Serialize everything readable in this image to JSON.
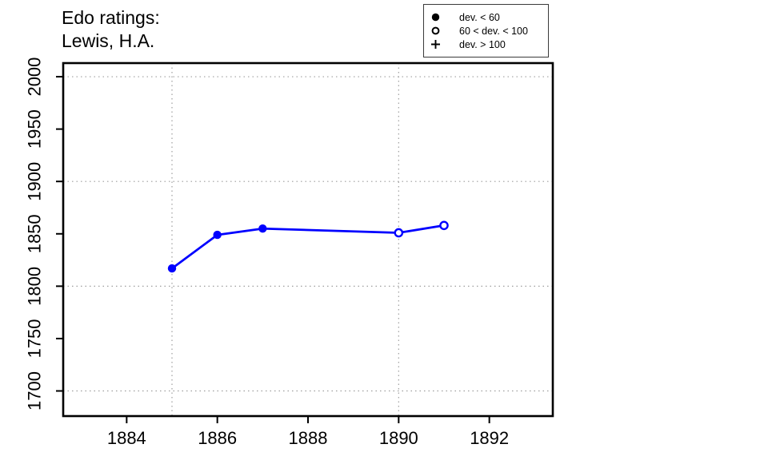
{
  "title": {
    "line1": "Edo ratings:",
    "line2": "Lewis, H.A."
  },
  "legend": {
    "position": "top-right",
    "items": [
      {
        "symbol": "filled-circle",
        "label": "dev. < 60"
      },
      {
        "symbol": "open-circle",
        "label": "60 < dev. < 100"
      },
      {
        "symbol": "plus",
        "label": "dev. > 100"
      }
    ]
  },
  "chart_data": {
    "type": "line",
    "title": "Edo ratings: Lewis, H.A.",
    "xlabel": "",
    "ylabel": "",
    "series": [
      {
        "name": "Edo rating",
        "color": "#0000ff",
        "points": [
          {
            "x": 1885,
            "y": 1817,
            "marker": "filled-circle"
          },
          {
            "x": 1886,
            "y": 1849,
            "marker": "filled-circle"
          },
          {
            "x": 1887,
            "y": 1855,
            "marker": "filled-circle"
          },
          {
            "x": 1890,
            "y": 1851,
            "marker": "open-circle"
          },
          {
            "x": 1891,
            "y": 1858,
            "marker": "open-circle"
          }
        ]
      }
    ],
    "marker_legend": {
      "filled-circle": "dev. < 60",
      "open-circle": "60 < dev. < 100",
      "plus": "dev. > 100"
    },
    "x_ticks": [
      1884,
      1886,
      1888,
      1890,
      1892
    ],
    "y_ticks": [
      1700,
      1750,
      1800,
      1850,
      1900,
      1950,
      2000
    ],
    "x_gridlines": [
      1885,
      1890
    ],
    "y_gridlines": [
      1700,
      1800,
      1900,
      2000
    ],
    "xlim": [
      1882.6,
      1893.4
    ],
    "ylim": [
      1676,
      2013
    ],
    "grid": "dotted",
    "grid_color": "#9e9e9e",
    "axis_color": "#000000",
    "line_color": "#0000ff"
  }
}
